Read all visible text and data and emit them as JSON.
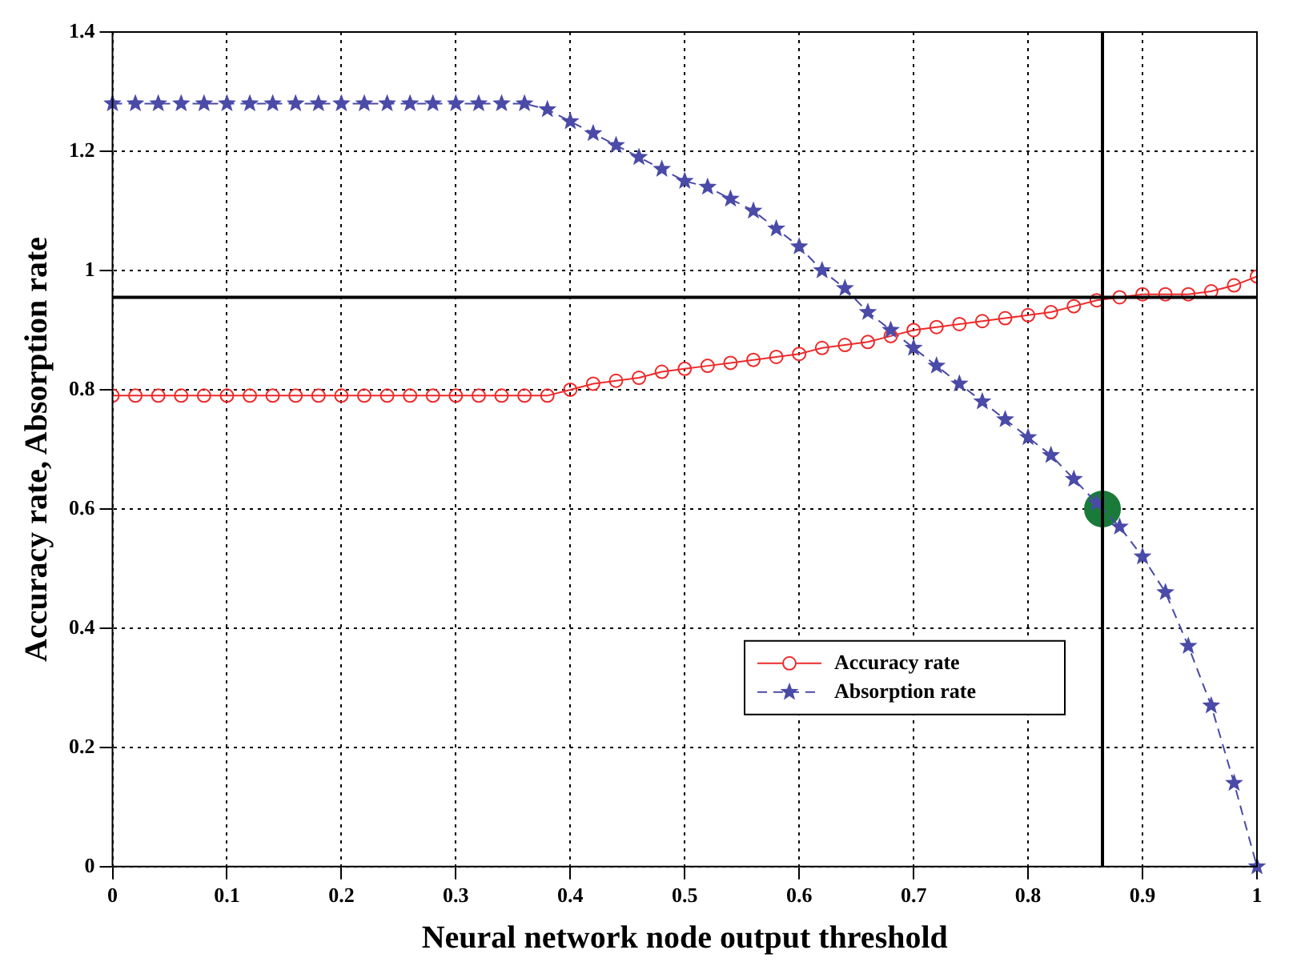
{
  "chart_data": {
    "type": "line",
    "xlabel": "Neural network node output threshold",
    "ylabel": "Accuracy rate, Absorption rate",
    "x": [
      0,
      0.02,
      0.04,
      0.06,
      0.08,
      0.1,
      0.12,
      0.14,
      0.16,
      0.18,
      0.2,
      0.22,
      0.24,
      0.26,
      0.28,
      0.3,
      0.32,
      0.34,
      0.36,
      0.38,
      0.4,
      0.42,
      0.44,
      0.46,
      0.48,
      0.5,
      0.52,
      0.54,
      0.56,
      0.58,
      0.6,
      0.62,
      0.64,
      0.66,
      0.68,
      0.7,
      0.72,
      0.74,
      0.76,
      0.78,
      0.8,
      0.82,
      0.84,
      0.86,
      0.88,
      0.9,
      0.92,
      0.94,
      0.96,
      0.98,
      1
    ],
    "series": [
      {
        "name": "Accuracy rate",
        "color": "#ee2a2a",
        "marker": "circle",
        "line_style": "solid",
        "values": [
          0.79,
          0.79,
          0.79,
          0.79,
          0.79,
          0.79,
          0.79,
          0.79,
          0.79,
          0.79,
          0.79,
          0.79,
          0.79,
          0.79,
          0.79,
          0.79,
          0.79,
          0.79,
          0.79,
          0.79,
          0.8,
          0.81,
          0.815,
          0.82,
          0.83,
          0.835,
          0.84,
          0.845,
          0.85,
          0.855,
          0.86,
          0.87,
          0.875,
          0.88,
          0.89,
          0.9,
          0.905,
          0.91,
          0.915,
          0.92,
          0.925,
          0.93,
          0.94,
          0.95,
          0.955,
          0.96,
          0.96,
          0.96,
          0.965,
          0.975,
          0.99
        ]
      },
      {
        "name": "Absorption rate",
        "color": "#4a4aa8",
        "marker": "star",
        "line_style": "dashed",
        "values": [
          1.28,
          1.28,
          1.28,
          1.28,
          1.28,
          1.28,
          1.28,
          1.28,
          1.28,
          1.28,
          1.28,
          1.28,
          1.28,
          1.28,
          1.28,
          1.28,
          1.28,
          1.28,
          1.28,
          1.27,
          1.25,
          1.23,
          1.21,
          1.19,
          1.17,
          1.15,
          1.14,
          1.12,
          1.1,
          1.07,
          1.04,
          1.0,
          0.97,
          0.93,
          0.9,
          0.87,
          0.84,
          0.81,
          0.78,
          0.75,
          0.72,
          0.69,
          0.65,
          0.61,
          0.57,
          0.52,
          0.46,
          0.37,
          0.27,
          0.14,
          0.0
        ]
      },
      {
        "type": "scatter",
        "color": "#1a7a3a",
        "marker": "circle",
        "x": [
          0.865
        ],
        "values": [
          0.6
        ]
      }
    ],
    "ref_lines": [
      {
        "axis": "y",
        "value": 0.955,
        "color": "#000000",
        "line_style": "solid"
      },
      {
        "axis": "x",
        "value": 0.865,
        "color": "#000000",
        "line_style": "solid"
      }
    ],
    "xlim": [
      0,
      1
    ],
    "xticks": [
      0,
      0.1,
      0.2,
      0.3,
      0.4,
      0.5,
      0.6,
      0.7,
      0.8,
      0.9,
      1
    ],
    "ylim": [
      0,
      1.4
    ],
    "yticks": [
      0,
      0.2,
      0.4,
      0.6,
      0.8,
      1,
      1.2,
      1.4
    ],
    "grid": true,
    "legend": "bottom right"
  }
}
